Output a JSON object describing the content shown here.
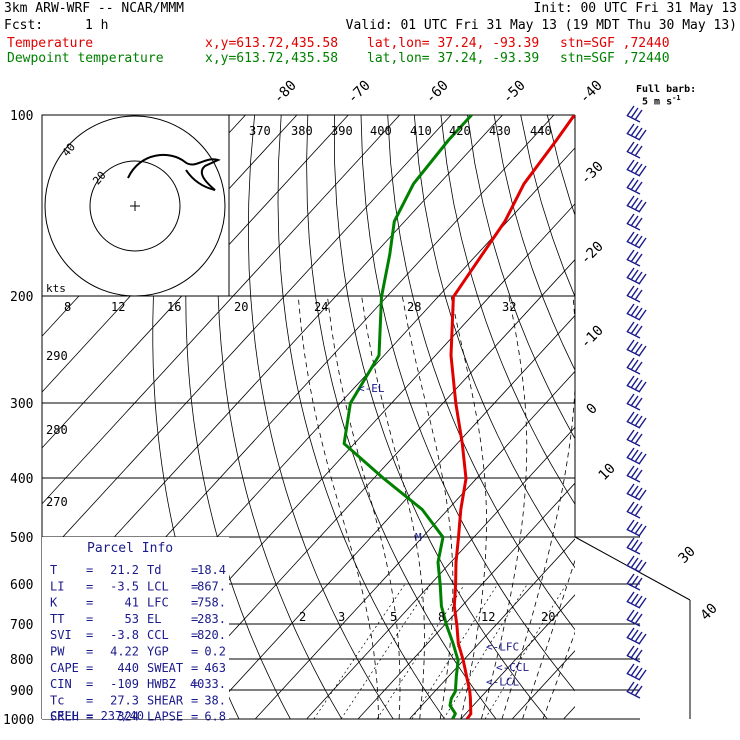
{
  "header": {
    "model": "3km ARW-WRF -- NCAR/MMM",
    "init": "Init: 00 UTC Fri 31 May 13",
    "fcst_label": "Fcst:",
    "fcst_value": "1 h",
    "valid": "Valid: 01 UTC Fri 31 May 13 (19 MDT Thu 30 May 13)",
    "temp_line": {
      "name": "Temperature",
      "xy": "x,y=613.72,435.58",
      "latlon": "lat,lon= 37.24, -93.39",
      "stn": "stn=SGF ,72440",
      "color": "#e00000"
    },
    "dew_line": {
      "name": "Dewpoint temperature",
      "xy": "x,y=613.72,435.58",
      "latlon": "lat,lon= 37.24, -93.39",
      "stn": "stn=SGF ,72440",
      "color": "#008000"
    }
  },
  "barb_legend": {
    "line1": "Full barb:",
    "line2": "5 m s",
    "sup": "-1"
  },
  "hodograph": {
    "units_label": "kts",
    "ring_labels": [
      "40",
      "20"
    ]
  },
  "parcel_info": {
    "title": "Parcel Info",
    "rows": [
      {
        "k1": "T",
        "v1": "21.2",
        "k2": "Td",
        "v2": "18.4"
      },
      {
        "k1": "LI",
        "v1": "-3.5",
        "k2": "LCL",
        "v2": "867."
      },
      {
        "k1": "K",
        "v1": "41",
        "k2": "LFC",
        "v2": "758."
      },
      {
        "k1": "TT",
        "v1": "53",
        "k2": "EL",
        "v2": "283."
      },
      {
        "k1": "SVI",
        "v1": "-3.8",
        "k2": "CCL",
        "v2": "820."
      },
      {
        "k1": "PW",
        "v1": "4.22",
        "k2": "YGP",
        "v2": "0.2"
      },
      {
        "k1": "CAPE",
        "v1": "440",
        "k2": "SWEAT",
        "v2": "463"
      },
      {
        "k1": "CIN",
        "v1": "-109",
        "k2": "HWBZ",
        "v2": "4033."
      },
      {
        "k1": "Tc",
        "v1": "27.3",
        "k2": "SHEAR",
        "v2": "38."
      },
      {
        "k1": "SREH",
        "v1": "324",
        "k2": "LAPSE",
        "v2": "6.8"
      }
    ],
    "cell": "CELL = 237/40"
  },
  "chart_data": {
    "type": "line",
    "pressure_levels": [
      100,
      200,
      300,
      400,
      500,
      600,
      700,
      800,
      900,
      1000
    ],
    "isotherm_labels": [
      {
        "value": "-80",
        "edge": "top"
      },
      {
        "value": "-70",
        "edge": "top"
      },
      {
        "value": "-60",
        "edge": "top"
      },
      {
        "value": "-50",
        "edge": "top"
      },
      {
        "value": "-40",
        "edge": "top"
      },
      {
        "value": "-30",
        "edge": "right"
      },
      {
        "value": "-20",
        "edge": "right"
      },
      {
        "value": "-10",
        "edge": "right"
      },
      {
        "value": "0",
        "edge": "right"
      },
      {
        "value": "10",
        "edge": "right"
      },
      {
        "value": "30",
        "edge": "corner"
      },
      {
        "value": "40",
        "edge": "corner"
      }
    ],
    "theta_labels_top": [
      "370",
      "380",
      "390",
      "400",
      "410",
      "420",
      "430",
      "440"
    ],
    "theta_labels_left": [
      "290",
      "280",
      "270"
    ],
    "theta_e_labels": [
      "8",
      "12",
      "16",
      "20",
      "24",
      "28",
      "32"
    ],
    "mixing_ratio_labels": [
      "2",
      "3",
      "5",
      "8",
      "12",
      "20"
    ],
    "series": [
      {
        "name": "Temperature",
        "color": "#e00000",
        "p": [
          1000,
          980,
          950,
          925,
          900,
          850,
          800,
          750,
          700,
          650,
          600,
          550,
          500,
          450,
          400,
          350,
          300,
          250,
          200,
          170,
          150,
          130,
          110,
          100
        ],
        "t": [
          21.2,
          21.0,
          19.5,
          18.2,
          16.8,
          13.5,
          10.0,
          6.0,
          2.5,
          -1.5,
          -5.0,
          -9.0,
          -13.0,
          -17.5,
          -22.0,
          -29.0,
          -37.5,
          -47.0,
          -57.0,
          -59.0,
          -60.5,
          -63.5,
          -65.0,
          -66.0
        ]
      },
      {
        "name": "Dewpoint temperature",
        "color": "#008000",
        "p": [
          1000,
          980,
          950,
          925,
          900,
          850,
          800,
          750,
          700,
          650,
          600,
          550,
          500,
          450,
          400,
          350,
          300,
          250,
          200,
          170,
          150,
          130,
          110,
          100
        ],
        "t": [
          18.4,
          18.0,
          15.5,
          14.5,
          14.0,
          11.5,
          9.0,
          5.0,
          0.5,
          -4.0,
          -8.0,
          -12.5,
          -16.0,
          -25.0,
          -38.0,
          -52.0,
          -58.0,
          -61.0,
          -71.0,
          -77.0,
          -82.0,
          -85.0,
          -86.0,
          -86.0
        ]
      }
    ],
    "parcel_markers": [
      {
        "label": "<-EL",
        "p": 283
      },
      {
        "label": "<-LFC",
        "p": 758
      },
      {
        "label": "<-CCL",
        "p": 820
      },
      {
        "label": "<-LCL",
        "p": 867
      },
      {
        "label": "M",
        "p": 500
      }
    ],
    "wind_barbs": {
      "units": "kts",
      "levels": [
        {
          "p": 100,
          "dir": 250,
          "spd": 40
        },
        {
          "p": 150,
          "dir": 255,
          "spd": 30
        },
        {
          "p": 200,
          "dir": 250,
          "spd": 35
        },
        {
          "p": 250,
          "dir": 245,
          "spd": 35
        },
        {
          "p": 300,
          "dir": 240,
          "spd": 30
        },
        {
          "p": 400,
          "dir": 235,
          "spd": 30
        },
        {
          "p": 500,
          "dir": 230,
          "spd": 35
        },
        {
          "p": 600,
          "dir": 225,
          "spd": 30
        },
        {
          "p": 700,
          "dir": 220,
          "spd": 30
        },
        {
          "p": 800,
          "dir": 210,
          "spd": 30
        },
        {
          "p": 900,
          "dir": 190,
          "spd": 25
        },
        {
          "p": 1000,
          "dir": 170,
          "spd": 15
        }
      ]
    }
  }
}
